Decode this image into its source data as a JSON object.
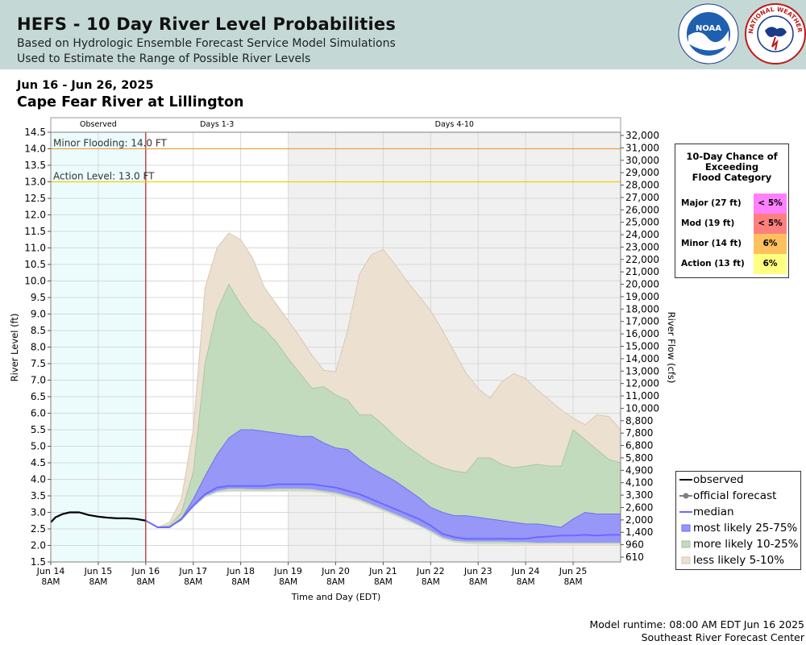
{
  "header": {
    "title": "HEFS - 10 Day River Level Probabilities",
    "subtitle_line1": "Based on Hydrologic Ensemble Forecast Service Model Simulations",
    "subtitle_line2": "Used to Estimate the Range of Possible River Levels",
    "noaa_logo_text": "NOAA",
    "nws_logo_text": "NATIONAL WEATHER SERVICE"
  },
  "date_range": "Jun 16 - Jun 26, 2025",
  "location": "Cape Fear River at Lillington",
  "colors": {
    "observed_bg": "#ecfcfc",
    "days410_bg": "#f0f0f0",
    "less_likely": "#ece0d1",
    "more_likely": "#c3dbbd",
    "most_likely": "#9797f8",
    "median": "#6a6aff",
    "observed_line": "#000000",
    "minor_line": "#f0a040",
    "action_line": "#f0d000",
    "forecast_start": "#b02020"
  },
  "chart_data": {
    "type": "area",
    "xlabel": "Time and Day (EDT)",
    "ylabel_left": "River Level (ft)",
    "ylabel_right": "River Flow (cfs)",
    "ylim": [
      1.5,
      14.5
    ],
    "xlim_days": [
      0,
      12
    ],
    "y_ticks": [
      "1.5",
      "2.0",
      "2.5",
      "3.0",
      "3.5",
      "4.0",
      "4.5",
      "5.0",
      "5.5",
      "6.0",
      "6.5",
      "7.0",
      "7.5",
      "8.0",
      "8.5",
      "9.0",
      "9.5",
      "10.0",
      "10.5",
      "11.0",
      "11.5",
      "12.0",
      "12.5",
      "13.0",
      "13.5",
      "14.0",
      "14.5"
    ],
    "right_ticks": [
      "610",
      "960",
      "1,400",
      "2,000",
      "2,600",
      "3,300",
      "4,100",
      "4,900",
      "5,800",
      "6,800",
      "7,800",
      "8,800",
      "10,000",
      "11,000",
      "12,000",
      "13,000",
      "14,000",
      "15,000",
      "16,000",
      "17,000",
      "18,000",
      "19,000",
      "20,000",
      "21,000",
      "22,000",
      "23,000",
      "24,000",
      "25,000",
      "26,000",
      "27,000",
      "28,000",
      "29,000",
      "30,000",
      "31,000",
      "32,000"
    ],
    "x_ticks": [
      {
        "day": "Jun 14",
        "time": "8AM"
      },
      {
        "day": "Jun 15",
        "time": "8AM"
      },
      {
        "day": "Jun 16",
        "time": "8AM"
      },
      {
        "day": "Jun 17",
        "time": "8AM"
      },
      {
        "day": "Jun 18",
        "time": "8AM"
      },
      {
        "day": "Jun 19",
        "time": "8AM"
      },
      {
        "day": "Jun 20",
        "time": "8AM"
      },
      {
        "day": "Jun 21",
        "time": "8AM"
      },
      {
        "day": "Jun 22",
        "time": "8AM"
      },
      {
        "day": "Jun 23",
        "time": "8AM"
      },
      {
        "day": "Jun 24",
        "time": "8AM"
      },
      {
        "day": "Jun 25",
        "time": "8AM"
      }
    ],
    "regions": [
      {
        "label": "Observed",
        "start": 0,
        "end": 2
      },
      {
        "label": "Days 1-3",
        "start": 2,
        "end": 5
      },
      {
        "label": "Days 4-10",
        "start": 5,
        "end": 12
      }
    ],
    "thresholds": [
      {
        "name": "minor",
        "label": "Minor Flooding: 14.0 FT",
        "value": 14.0
      },
      {
        "name": "action",
        "label": "Action Level: 13.0 FT",
        "value": 13.0
      }
    ],
    "observed": {
      "x": [
        0,
        0.1,
        0.25,
        0.4,
        0.6,
        0.8,
        1.0,
        1.2,
        1.4,
        1.6,
        1.8,
        2.0
      ],
      "y": [
        2.7,
        2.85,
        2.95,
        3.0,
        3.0,
        2.92,
        2.87,
        2.84,
        2.82,
        2.82,
        2.8,
        2.75
      ]
    },
    "forecast_x": [
      2.0,
      2.25,
      2.5,
      2.75,
      3.0,
      3.25,
      3.5,
      3.75,
      4.0,
      4.25,
      4.5,
      4.75,
      5.0,
      5.25,
      5.5,
      5.75,
      6.0,
      6.25,
      6.5,
      6.75,
      7.0,
      7.25,
      7.5,
      7.75,
      8.0,
      8.25,
      8.5,
      8.75,
      9.0,
      9.25,
      9.5,
      9.75,
      10.0,
      10.25,
      10.5,
      10.75,
      11.0,
      11.25,
      11.5,
      11.75,
      12.0
    ],
    "series": [
      {
        "name": "less likely 5-10% upper",
        "values": [
          2.75,
          2.55,
          2.7,
          3.4,
          5.5,
          9.8,
          11.0,
          11.45,
          11.25,
          10.7,
          9.8,
          9.3,
          8.8,
          8.3,
          7.75,
          7.3,
          7.25,
          8.5,
          10.2,
          10.8,
          10.95,
          10.5,
          10.0,
          9.55,
          9.1,
          8.5,
          7.85,
          7.2,
          6.75,
          6.45,
          6.95,
          7.2,
          7.05,
          6.7,
          6.4,
          6.1,
          5.85,
          5.65,
          5.95,
          5.9,
          5.5
        ]
      },
      {
        "name": "more likely 10-25% upper",
        "values": [
          2.75,
          2.55,
          2.6,
          3.0,
          4.2,
          7.5,
          9.1,
          9.9,
          9.3,
          8.8,
          8.55,
          8.15,
          7.65,
          7.2,
          6.75,
          6.8,
          6.55,
          6.4,
          5.95,
          5.95,
          5.65,
          5.3,
          5.0,
          4.75,
          4.5,
          4.35,
          4.25,
          4.2,
          4.65,
          4.65,
          4.45,
          4.35,
          4.4,
          4.45,
          4.4,
          4.4,
          5.5,
          5.2,
          4.9,
          4.6,
          4.5
        ]
      },
      {
        "name": "most likely 25-75% upper",
        "values": [
          2.75,
          2.55,
          2.55,
          2.8,
          3.4,
          4.1,
          4.75,
          5.25,
          5.5,
          5.5,
          5.45,
          5.4,
          5.35,
          5.3,
          5.3,
          5.1,
          4.95,
          4.9,
          4.6,
          4.35,
          4.15,
          3.95,
          3.7,
          3.45,
          3.15,
          3.0,
          2.9,
          2.9,
          2.85,
          2.8,
          2.75,
          2.7,
          2.65,
          2.65,
          2.6,
          2.55,
          2.8,
          3.0,
          2.95,
          2.95,
          2.95
        ]
      },
      {
        "name": "median",
        "values": [
          2.75,
          2.55,
          2.55,
          2.8,
          3.2,
          3.55,
          3.75,
          3.8,
          3.8,
          3.8,
          3.8,
          3.85,
          3.85,
          3.85,
          3.85,
          3.8,
          3.75,
          3.65,
          3.55,
          3.4,
          3.25,
          3.1,
          2.95,
          2.8,
          2.6,
          2.35,
          2.25,
          2.2,
          2.2,
          2.2,
          2.2,
          2.2,
          2.2,
          2.25,
          2.27,
          2.3,
          2.3,
          2.32,
          2.3,
          2.32,
          2.32
        ]
      },
      {
        "name": "most likely 25-75% lower",
        "values": [
          2.75,
          2.55,
          2.55,
          2.75,
          3.2,
          3.5,
          3.65,
          3.72,
          3.72,
          3.7,
          3.7,
          3.72,
          3.72,
          3.72,
          3.7,
          3.65,
          3.6,
          3.5,
          3.4,
          3.25,
          3.1,
          2.95,
          2.8,
          2.62,
          2.45,
          2.25,
          2.15,
          2.12,
          2.12,
          2.12,
          2.12,
          2.1,
          2.1,
          2.08,
          2.08,
          2.08,
          2.08,
          2.08,
          2.08,
          2.08,
          2.08
        ]
      },
      {
        "name": "more likely 10-25% lower",
        "values": [
          2.75,
          2.55,
          2.55,
          2.75,
          3.15,
          3.45,
          3.6,
          3.65,
          3.65,
          3.65,
          3.65,
          3.65,
          3.65,
          3.65,
          3.65,
          3.6,
          3.55,
          3.45,
          3.35,
          3.2,
          3.05,
          2.9,
          2.75,
          2.6,
          2.4,
          2.2,
          2.1,
          2.07,
          2.05,
          2.05,
          2.05,
          2.05,
          2.05,
          2.05,
          2.05,
          2.05,
          2.05,
          2.05,
          2.05,
          2.05,
          2.05
        ]
      },
      {
        "name": "less likely 5-10% lower",
        "values": [
          2.75,
          2.55,
          2.55,
          2.75,
          3.15,
          3.45,
          3.6,
          3.62,
          3.62,
          3.62,
          3.62,
          3.62,
          3.62,
          3.62,
          3.6,
          3.58,
          3.5,
          3.42,
          3.32,
          3.18,
          3.02,
          2.88,
          2.72,
          2.57,
          2.38,
          2.18,
          2.08,
          2.04,
          2.02,
          2.02,
          2.02,
          2.02,
          2.0,
          2.0,
          2.0,
          2.0,
          2.0,
          2.0,
          2.0,
          2.0,
          2.0
        ]
      }
    ]
  },
  "flood_chance": {
    "title_line1": "10-Day Chance of",
    "title_line2": "Exceeding",
    "title_line3": "Flood Category",
    "rows": [
      {
        "label": "Major (27 ft)",
        "value": "< 5%",
        "color": "#ff80ff"
      },
      {
        "label": "Mod (19 ft)",
        "value": "< 5%",
        "color": "#ff7f7f"
      },
      {
        "label": "Minor (14 ft)",
        "value": "6%",
        "color": "#ffc060"
      },
      {
        "label": "Action (13 ft)",
        "value": "6%",
        "color": "#ffff80"
      }
    ]
  },
  "legend": [
    {
      "label": "observed"
    },
    {
      "label": "official forecast"
    },
    {
      "label": "median"
    },
    {
      "label": "most likely 25-75%"
    },
    {
      "label": "more likely 10-25%"
    },
    {
      "label": "less likely 5-10%"
    }
  ],
  "footer": {
    "line1": "Model runtime: 08:00 AM EDT Jun 16 2025",
    "line2": "Southeast River Forecast Center"
  }
}
